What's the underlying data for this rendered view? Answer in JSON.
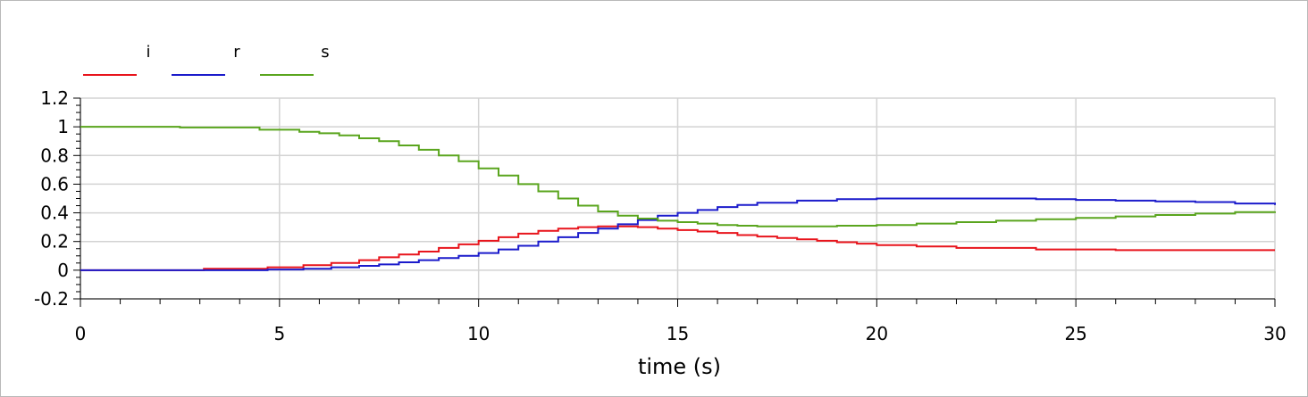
{
  "chart_data": {
    "type": "line",
    "xlabel": "time (s)",
    "ylabel": "",
    "xlim": [
      0,
      30
    ],
    "ylim": [
      -0.2,
      1.2
    ],
    "x_ticks": [
      0,
      5,
      10,
      15,
      20,
      25,
      30
    ],
    "y_ticks": [
      -0.2,
      0,
      0.2,
      0.4,
      0.6,
      0.8,
      1,
      1.2
    ],
    "y_tick_labels": [
      "-0.2",
      "0",
      "0.2",
      "0.4",
      "0.6",
      "0.8",
      "1",
      "1.2"
    ],
    "grid": true,
    "legend_position": "top-left",
    "series": [
      {
        "name": "i",
        "color": "#e8141c",
        "x": [
          0,
          3.1,
          4.7,
          5.6,
          6.3,
          7,
          7.5,
          8,
          8.5,
          9,
          9.5,
          10,
          10.5,
          11,
          11.5,
          12,
          12.5,
          13,
          13.5,
          14,
          14.5,
          15,
          15.5,
          16,
          16.5,
          17,
          17.5,
          18,
          18.5,
          19,
          19.5,
          20,
          21,
          22,
          24,
          26,
          30
        ],
        "y": [
          0,
          0.01,
          0.02,
          0.035,
          0.05,
          0.07,
          0.09,
          0.11,
          0.13,
          0.155,
          0.18,
          0.205,
          0.23,
          0.255,
          0.275,
          0.29,
          0.3,
          0.305,
          0.305,
          0.3,
          0.29,
          0.28,
          0.27,
          0.26,
          0.245,
          0.235,
          0.225,
          0.215,
          0.205,
          0.195,
          0.185,
          0.175,
          0.165,
          0.155,
          0.145,
          0.14,
          0.14
        ]
      },
      {
        "name": "r",
        "color": "#1b1bcb",
        "x": [
          0,
          4.7,
          5.6,
          6.3,
          7,
          7.5,
          8,
          8.5,
          9,
          9.5,
          10,
          10.5,
          11,
          11.5,
          12,
          12.5,
          13,
          13.5,
          14,
          14.5,
          15,
          15.5,
          16,
          16.5,
          17,
          18,
          19,
          20,
          21,
          22,
          23,
          24,
          25,
          26,
          27,
          28,
          29,
          30
        ],
        "y": [
          0,
          0.005,
          0.01,
          0.02,
          0.03,
          0.04,
          0.055,
          0.07,
          0.085,
          0.1,
          0.12,
          0.145,
          0.17,
          0.2,
          0.23,
          0.26,
          0.29,
          0.32,
          0.35,
          0.38,
          0.4,
          0.42,
          0.44,
          0.455,
          0.47,
          0.485,
          0.495,
          0.5,
          0.5,
          0.5,
          0.5,
          0.495,
          0.49,
          0.485,
          0.48,
          0.475,
          0.465,
          0.455
        ]
      },
      {
        "name": "s",
        "color": "#5aa51e",
        "x": [
          0,
          2.5,
          4.5,
          5.5,
          6,
          6.5,
          7,
          7.5,
          8,
          8.5,
          9,
          9.5,
          10,
          10.5,
          11,
          11.5,
          12,
          12.5,
          13,
          13.5,
          14,
          14.5,
          15,
          15.5,
          16,
          16.5,
          17,
          18,
          19,
          20,
          21,
          22,
          23,
          24,
          25,
          26,
          27,
          28,
          29,
          30
        ],
        "y": [
          1,
          0.995,
          0.98,
          0.965,
          0.955,
          0.94,
          0.92,
          0.9,
          0.87,
          0.84,
          0.8,
          0.76,
          0.71,
          0.66,
          0.6,
          0.55,
          0.5,
          0.45,
          0.41,
          0.38,
          0.36,
          0.345,
          0.335,
          0.325,
          0.315,
          0.31,
          0.305,
          0.305,
          0.31,
          0.315,
          0.325,
          0.335,
          0.345,
          0.355,
          0.365,
          0.375,
          0.385,
          0.395,
          0.405,
          0.41
        ]
      }
    ]
  }
}
